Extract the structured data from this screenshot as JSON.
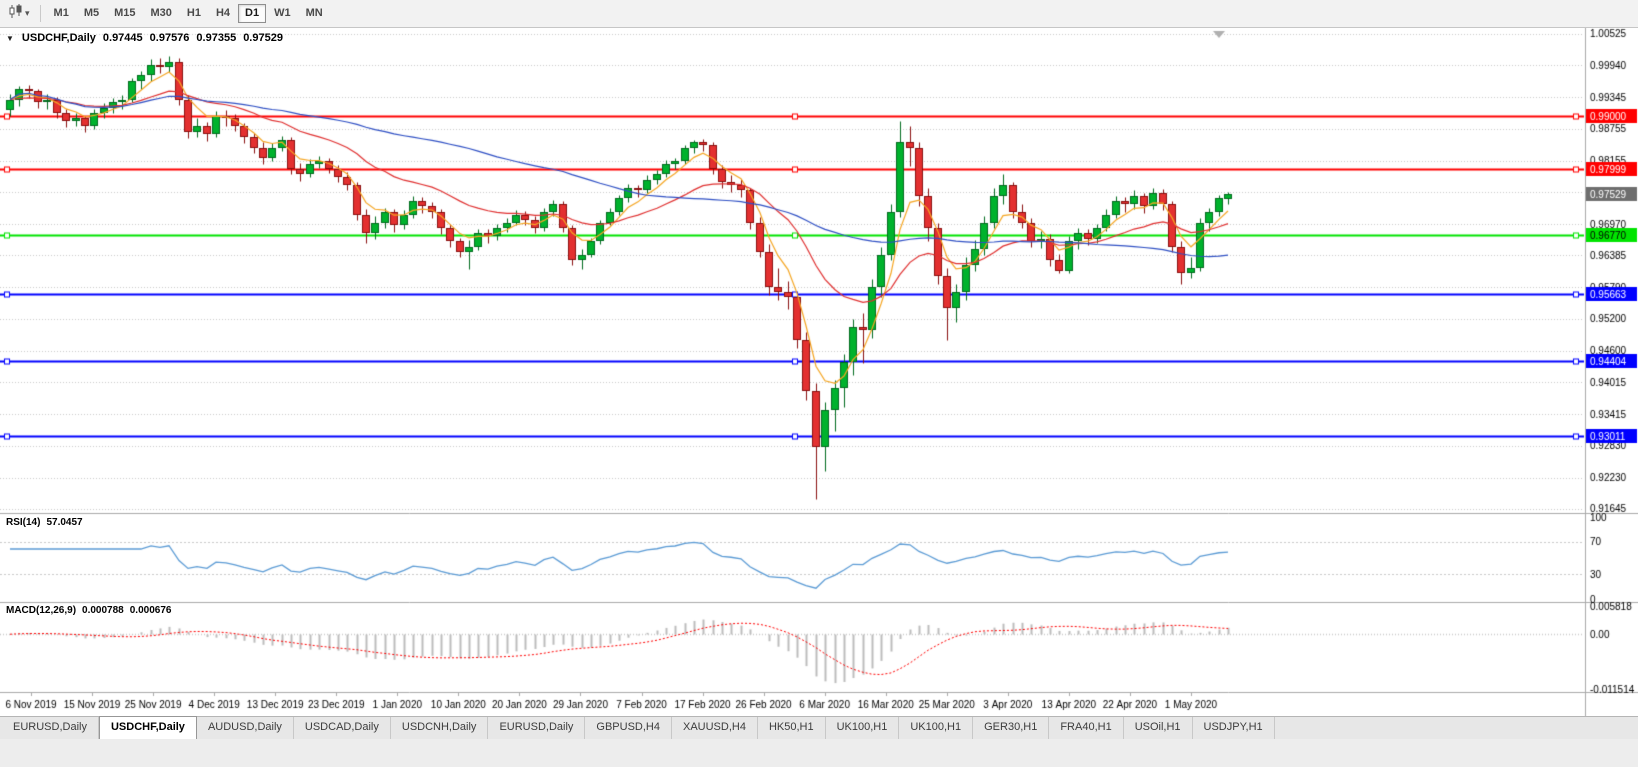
{
  "toolbar": {
    "timeframes": [
      {
        "label": "M1",
        "active": false
      },
      {
        "label": "M5",
        "active": false
      },
      {
        "label": "M15",
        "active": false
      },
      {
        "label": "M30",
        "active": false
      },
      {
        "label": "H1",
        "active": false
      },
      {
        "label": "H4",
        "active": false
      },
      {
        "label": "D1",
        "active": true
      },
      {
        "label": "W1",
        "active": false
      },
      {
        "label": "MN",
        "active": false
      }
    ],
    "dropdown_caret": "▾"
  },
  "chart": {
    "header": {
      "collapse_icon": "▼",
      "symbol": "USDCHF,Daily",
      "open": "0.97445",
      "high": "0.97576",
      "low": "0.97355",
      "close": "0.97529"
    }
  },
  "chart_data": {
    "type": "candlestick",
    "title": "USDCHF,Daily",
    "symbol": "USDCHF",
    "timeframe": "Daily",
    "colors": {
      "bull_fill": "#00B22D",
      "bull_stroke": "#006B1E",
      "bear_fill": "#E33030",
      "bear_stroke": "#8A0F0F",
      "grid": "#C9C9C9",
      "axis_line": "#A9A9A9",
      "text": "#000000"
    },
    "price_ticks": [
      "1.00525",
      "0.99940",
      "0.99345",
      "0.98755",
      "0.98155",
      "0.96970",
      "0.96385",
      "0.95790",
      "0.95200",
      "0.94600",
      "0.94015",
      "0.93415",
      "0.92830",
      "0.92230",
      "0.91645"
    ],
    "hlines": [
      {
        "price": 0.99,
        "label": "0.99000",
        "color": "#FF0000",
        "label_text_color": "#FFFFFF"
      },
      {
        "price": 0.97999,
        "label": "0.97999",
        "color": "#FF0000",
        "label_text_color": "#FFFFFF"
      },
      {
        "price": 0.9677,
        "label": "0.96770",
        "color": "#00E400",
        "label_text_color": "#000000"
      },
      {
        "price": 0.95663,
        "label": "0.95663",
        "color": "#0000FF",
        "label_text_color": "#FFFFFF"
      },
      {
        "price": 0.94404,
        "label": "0.94404",
        "color": "#0000FF",
        "label_text_color": "#FFFFFF"
      },
      {
        "price": 0.93011,
        "label": "0.93011",
        "color": "#0000FF",
        "label_text_color": "#FFFFFF"
      }
    ],
    "current_price": {
      "value": 0.97529,
      "label": "0.97529",
      "badge_color": "#6E6E6E"
    },
    "moving_averages": [
      {
        "period": 5,
        "method": "ema",
        "color": "#F5A623"
      },
      {
        "period": 20,
        "method": "ema",
        "color": "#E03030"
      },
      {
        "period": 50,
        "method": "sma",
        "color": "#2E4FC4"
      }
    ],
    "indicators": {
      "rsi": {
        "label": "RSI(14)",
        "value": "57.0457",
        "period": 14,
        "levels": [
          "100",
          "70",
          "30",
          "0"
        ],
        "color": "#5B9BD5"
      },
      "macd": {
        "label": "MACD(12,26,9)",
        "value_main": "0.000788",
        "value_signal": "0.000676",
        "fast": 12,
        "slow": 26,
        "signal": 9,
        "axis_labels": [
          "0.005818",
          "0.00",
          "-0.011514"
        ],
        "max": 0.005818,
        "min": -0.011514,
        "histogram_color": "#BDBDBD",
        "signal_color": "#FF0000"
      }
    },
    "date_labels": [
      "6 Nov 2019",
      "15 Nov 2019",
      "25 Nov 2019",
      "4 Dec 2019",
      "13 Dec 2019",
      "23 Dec 2019",
      "1 Jan 2020",
      "10 Jan 2020",
      "20 Jan 2020",
      "29 Jan 2020",
      "7 Feb 2020",
      "17 Feb 2020",
      "26 Feb 2020",
      "6 Mar 2020",
      "16 Mar 2020",
      "25 Mar 2020",
      "3 Apr 2020",
      "13 Apr 2020",
      "22 Apr 2020",
      "1 May 2020"
    ],
    "candles": [
      [
        0.991,
        0.994,
        0.99,
        0.993
      ],
      [
        0.993,
        0.9956,
        0.9918,
        0.995
      ],
      [
        0.995,
        0.9958,
        0.9933,
        0.9945
      ],
      [
        0.9945,
        0.995,
        0.9915,
        0.9925
      ],
      [
        0.9925,
        0.994,
        0.9913,
        0.993
      ],
      [
        0.993,
        0.9935,
        0.9895,
        0.9905
      ],
      [
        0.9905,
        0.9912,
        0.9878,
        0.989
      ],
      [
        0.989,
        0.9905,
        0.988,
        0.9895
      ],
      [
        0.9895,
        0.99,
        0.987,
        0.988
      ],
      [
        0.988,
        0.9912,
        0.9875,
        0.9905
      ],
      [
        0.9905,
        0.9923,
        0.9895,
        0.9915
      ],
      [
        0.9915,
        0.9933,
        0.9905,
        0.9925
      ],
      [
        0.9925,
        0.9938,
        0.9912,
        0.993
      ],
      [
        0.993,
        0.997,
        0.9925,
        0.9965
      ],
      [
        0.9965,
        0.9983,
        0.995,
        0.9975
      ],
      [
        0.9975,
        1.0005,
        0.9965,
        0.9995
      ],
      [
        0.9995,
        1.0008,
        0.998,
        0.999
      ],
      [
        0.999,
        1.0012,
        0.9982,
        1.0
      ],
      [
        1.0,
        1.0007,
        0.992,
        0.993
      ],
      [
        0.993,
        0.9938,
        0.9858,
        0.987
      ],
      [
        0.987,
        0.9895,
        0.986,
        0.988
      ],
      [
        0.988,
        0.9888,
        0.9852,
        0.9865
      ],
      [
        0.9865,
        0.9908,
        0.986,
        0.99
      ],
      [
        0.99,
        0.991,
        0.988,
        0.9895
      ],
      [
        0.9895,
        0.9902,
        0.9872,
        0.988
      ],
      [
        0.988,
        0.9887,
        0.9848,
        0.986
      ],
      [
        0.986,
        0.9868,
        0.983,
        0.984
      ],
      [
        0.984,
        0.985,
        0.981,
        0.982
      ],
      [
        0.982,
        0.9848,
        0.9815,
        0.984
      ],
      [
        0.984,
        0.9862,
        0.9833,
        0.9855
      ],
      [
        0.9855,
        0.986,
        0.979,
        0.98
      ],
      [
        0.98,
        0.9812,
        0.9778,
        0.979
      ],
      [
        0.979,
        0.9818,
        0.9785,
        0.981
      ],
      [
        0.981,
        0.9825,
        0.9802,
        0.9815
      ],
      [
        0.9815,
        0.982,
        0.9792,
        0.98
      ],
      [
        0.98,
        0.9808,
        0.9775,
        0.9785
      ],
      [
        0.9785,
        0.9795,
        0.976,
        0.977
      ],
      [
        0.977,
        0.9775,
        0.9705,
        0.9715
      ],
      [
        0.9715,
        0.9725,
        0.9662,
        0.968
      ],
      [
        0.968,
        0.9712,
        0.967,
        0.97
      ],
      [
        0.97,
        0.9728,
        0.969,
        0.972
      ],
      [
        0.972,
        0.9726,
        0.9682,
        0.9695
      ],
      [
        0.9695,
        0.9723,
        0.9688,
        0.9715
      ],
      [
        0.9715,
        0.975,
        0.9708,
        0.974
      ],
      [
        0.974,
        0.9748,
        0.9718,
        0.973
      ],
      [
        0.973,
        0.9738,
        0.9708,
        0.972
      ],
      [
        0.972,
        0.9726,
        0.9678,
        0.969
      ],
      [
        0.969,
        0.9698,
        0.9655,
        0.9665
      ],
      [
        0.9665,
        0.9672,
        0.9635,
        0.9645
      ],
      [
        0.9645,
        0.9668,
        0.9613,
        0.9655
      ],
      [
        0.9655,
        0.9688,
        0.9648,
        0.968
      ],
      [
        0.968,
        0.9687,
        0.9662,
        0.9675
      ],
      [
        0.9675,
        0.9698,
        0.9668,
        0.969
      ],
      [
        0.969,
        0.9708,
        0.9682,
        0.97
      ],
      [
        0.97,
        0.9723,
        0.9695,
        0.9715
      ],
      [
        0.9715,
        0.9722,
        0.9696,
        0.9705
      ],
      [
        0.9705,
        0.9712,
        0.968,
        0.969
      ],
      [
        0.969,
        0.9728,
        0.9685,
        0.972
      ],
      [
        0.972,
        0.9743,
        0.9712,
        0.9735
      ],
      [
        0.9735,
        0.974,
        0.9682,
        0.969
      ],
      [
        0.969,
        0.9695,
        0.962,
        0.963
      ],
      [
        0.963,
        0.965,
        0.9613,
        0.964
      ],
      [
        0.964,
        0.9672,
        0.9635,
        0.9665
      ],
      [
        0.9665,
        0.9705,
        0.966,
        0.97
      ],
      [
        0.97,
        0.9728,
        0.9695,
        0.972
      ],
      [
        0.972,
        0.9752,
        0.9715,
        0.9745
      ],
      [
        0.9745,
        0.9772,
        0.9738,
        0.9765
      ],
      [
        0.9765,
        0.977,
        0.9748,
        0.976
      ],
      [
        0.976,
        0.9788,
        0.9755,
        0.978
      ],
      [
        0.978,
        0.9798,
        0.9772,
        0.979
      ],
      [
        0.979,
        0.9816,
        0.9785,
        0.981
      ],
      [
        0.981,
        0.982,
        0.98,
        0.9815
      ],
      [
        0.9815,
        0.9845,
        0.981,
        0.984
      ],
      [
        0.984,
        0.9855,
        0.983,
        0.985
      ],
      [
        0.985,
        0.9856,
        0.9833,
        0.9845
      ],
      [
        0.9845,
        0.985,
        0.979,
        0.98
      ],
      [
        0.98,
        0.9808,
        0.9765,
        0.9775
      ],
      [
        0.9775,
        0.9788,
        0.9758,
        0.977
      ],
      [
        0.977,
        0.9782,
        0.9748,
        0.976
      ],
      [
        0.976,
        0.9765,
        0.9688,
        0.97
      ],
      [
        0.97,
        0.971,
        0.9635,
        0.9645
      ],
      [
        0.9645,
        0.966,
        0.9565,
        0.958
      ],
      [
        0.958,
        0.9615,
        0.9555,
        0.957
      ],
      [
        0.957,
        0.959,
        0.9538,
        0.956
      ],
      [
        0.956,
        0.9568,
        0.9465,
        0.948
      ],
      [
        0.948,
        0.9495,
        0.9368,
        0.9385
      ],
      [
        0.9385,
        0.94,
        0.9183,
        0.928
      ],
      [
        0.928,
        0.9365,
        0.9235,
        0.935
      ],
      [
        0.935,
        0.9405,
        0.931,
        0.939
      ],
      [
        0.939,
        0.9455,
        0.9355,
        0.944
      ],
      [
        0.944,
        0.952,
        0.9415,
        0.9505
      ],
      [
        0.9505,
        0.953,
        0.9438,
        0.95
      ],
      [
        0.95,
        0.9595,
        0.9485,
        0.958
      ],
      [
        0.958,
        0.9655,
        0.956,
        0.964
      ],
      [
        0.964,
        0.9735,
        0.963,
        0.972
      ],
      [
        0.972,
        0.989,
        0.971,
        0.985
      ],
      [
        0.985,
        0.988,
        0.9805,
        0.984
      ],
      [
        0.984,
        0.985,
        0.973,
        0.975
      ],
      [
        0.975,
        0.9765,
        0.9665,
        0.969
      ],
      [
        0.969,
        0.97,
        0.9585,
        0.96
      ],
      [
        0.96,
        0.9615,
        0.948,
        0.954
      ],
      [
        0.954,
        0.9585,
        0.9515,
        0.957
      ],
      [
        0.957,
        0.9635,
        0.9555,
        0.962
      ],
      [
        0.962,
        0.9668,
        0.961,
        0.965
      ],
      [
        0.965,
        0.9712,
        0.964,
        0.97
      ],
      [
        0.97,
        0.9765,
        0.969,
        0.975
      ],
      [
        0.975,
        0.979,
        0.9735,
        0.977
      ],
      [
        0.977,
        0.9775,
        0.9708,
        0.972
      ],
      [
        0.972,
        0.9735,
        0.969,
        0.97
      ],
      [
        0.97,
        0.9708,
        0.9655,
        0.9665
      ],
      [
        0.9665,
        0.9685,
        0.9652,
        0.967
      ],
      [
        0.967,
        0.9678,
        0.9618,
        0.963
      ],
      [
        0.963,
        0.9642,
        0.9605,
        0.961
      ],
      [
        0.961,
        0.9675,
        0.9605,
        0.9665
      ],
      [
        0.9665,
        0.969,
        0.965,
        0.968
      ],
      [
        0.968,
        0.9688,
        0.9658,
        0.967
      ],
      [
        0.967,
        0.9698,
        0.9662,
        0.969
      ],
      [
        0.969,
        0.9725,
        0.9685,
        0.9715
      ],
      [
        0.9715,
        0.975,
        0.9708,
        0.974
      ],
      [
        0.974,
        0.9748,
        0.972,
        0.9735
      ],
      [
        0.9735,
        0.976,
        0.9725,
        0.975
      ],
      [
        0.975,
        0.9756,
        0.9718,
        0.973
      ],
      [
        0.973,
        0.9765,
        0.9725,
        0.9755
      ],
      [
        0.9755,
        0.9762,
        0.9723,
        0.9735
      ],
      [
        0.9735,
        0.974,
        0.9645,
        0.9655
      ],
      [
        0.9655,
        0.9665,
        0.9585,
        0.9605
      ],
      [
        0.9605,
        0.9635,
        0.9597,
        0.9615
      ],
      [
        0.9615,
        0.9708,
        0.961,
        0.97
      ],
      [
        0.97,
        0.9728,
        0.9685,
        0.972
      ],
      [
        0.972,
        0.9752,
        0.9712,
        0.9745
      ],
      [
        0.97445,
        0.97576,
        0.97355,
        0.97529
      ]
    ]
  },
  "tabs": {
    "active_index": 1,
    "items": [
      "EURUSD,Daily",
      "USDCHF,Daily",
      "AUDUSD,Daily",
      "USDCAD,Daily",
      "USDCNH,Daily",
      "EURUSD,Daily",
      "GBPUSD,H4",
      "XAUUSD,H4",
      "HK50,H1",
      "UK100,H1",
      "UK100,H1",
      "GER30,H1",
      "FRA40,H1",
      "USOil,H1",
      "USDJPY,H1"
    ]
  }
}
